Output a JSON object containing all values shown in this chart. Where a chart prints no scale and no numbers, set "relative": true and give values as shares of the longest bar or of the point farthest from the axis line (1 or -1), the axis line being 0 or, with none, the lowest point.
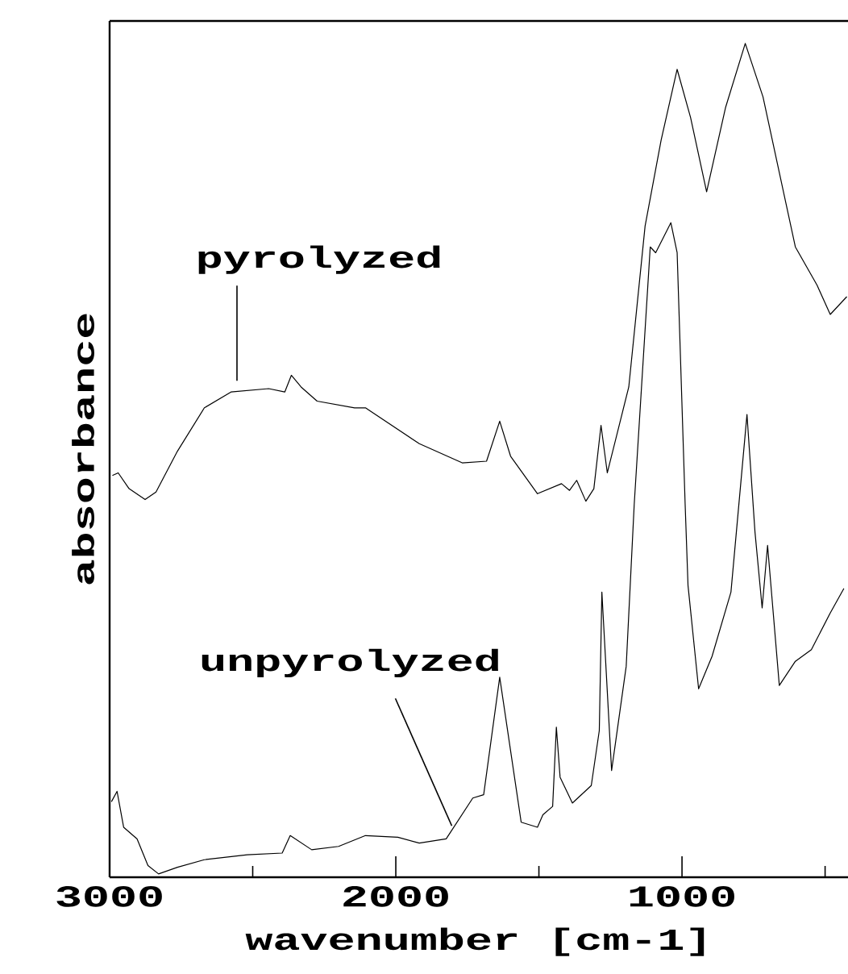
{
  "chart_data": {
    "type": "line",
    "xlabel": "wavenumber [cm-1]",
    "ylabel": "absorbance",
    "relative": true,
    "xlim": [
      3000,
      420
    ],
    "xticks": [
      3000,
      {
        "value": 2500,
        "label": null
      },
      2000,
      {
        "value": 1500,
        "label": null
      },
      1000,
      {
        "value": 500,
        "label": null
      }
    ],
    "series": [
      {
        "color": "#000000",
        "x": [
          2989,
          2970,
          2932,
          2876,
          2838,
          2763,
          2669,
          2576,
          2444,
          2388,
          2365,
          2331,
          2275,
          2144,
          2106,
          1918,
          1768,
          1683,
          1637,
          1599,
          1505,
          1421,
          1393,
          1368,
          1336,
          1308,
          1283,
          1261,
          1186,
          1129,
          1073,
          1017,
          970,
          914,
          848,
          779,
          717,
          604,
          528,
          482,
          425
        ],
        "values": [
          0.482,
          0.485,
          0.466,
          0.453,
          0.462,
          0.511,
          0.563,
          0.582,
          0.586,
          0.582,
          0.602,
          0.588,
          0.571,
          0.563,
          0.563,
          0.52,
          0.497,
          0.499,
          0.547,
          0.505,
          0.46,
          0.472,
          0.464,
          0.476,
          0.451,
          0.466,
          0.542,
          0.485,
          0.588,
          0.781,
          0.884,
          0.969,
          0.911,
          0.822,
          0.923,
          1.0,
          0.936,
          0.756,
          0.71,
          0.675,
          0.696
        ]
      },
      {
        "color": "#000000",
        "x": [
          2993,
          2974,
          2951,
          2904,
          2866,
          2829,
          2763,
          2669,
          2519,
          2397,
          2369,
          2294,
          2200,
          2106,
          1993,
          1918,
          1824,
          1731,
          1693,
          1637,
          1562,
          1505,
          1486,
          1452,
          1439,
          1426,
          1383,
          1317,
          1289,
          1280,
          1246,
          1195,
          1167,
          1111,
          1092,
          1039,
          1017,
          989,
          979,
          942,
          895,
          829,
          773,
          745,
          720,
          701,
          660,
          604,
          548,
          482,
          435
        ],
        "values": [
          0.091,
          0.103,
          0.06,
          0.046,
          0.014,
          0.004,
          0.012,
          0.021,
          0.027,
          0.029,
          0.05,
          0.033,
          0.037,
          0.05,
          0.048,
          0.041,
          0.046,
          0.095,
          0.099,
          0.24,
          0.066,
          0.06,
          0.075,
          0.085,
          0.18,
          0.12,
          0.089,
          0.11,
          0.176,
          0.342,
          0.128,
          0.253,
          0.447,
          0.756,
          0.749,
          0.785,
          0.749,
          0.447,
          0.35,
          0.226,
          0.265,
          0.342,
          0.555,
          0.414,
          0.323,
          0.398,
          0.23,
          0.259,
          0.273,
          0.317,
          0.346
        ]
      }
    ],
    "annotations": [
      {
        "text": "pyrolyzed",
        "x": 2555,
        "y": 0.58
      },
      {
        "text": "unpyrolyzed",
        "x": 1810,
        "y": 0.05
      }
    ]
  }
}
